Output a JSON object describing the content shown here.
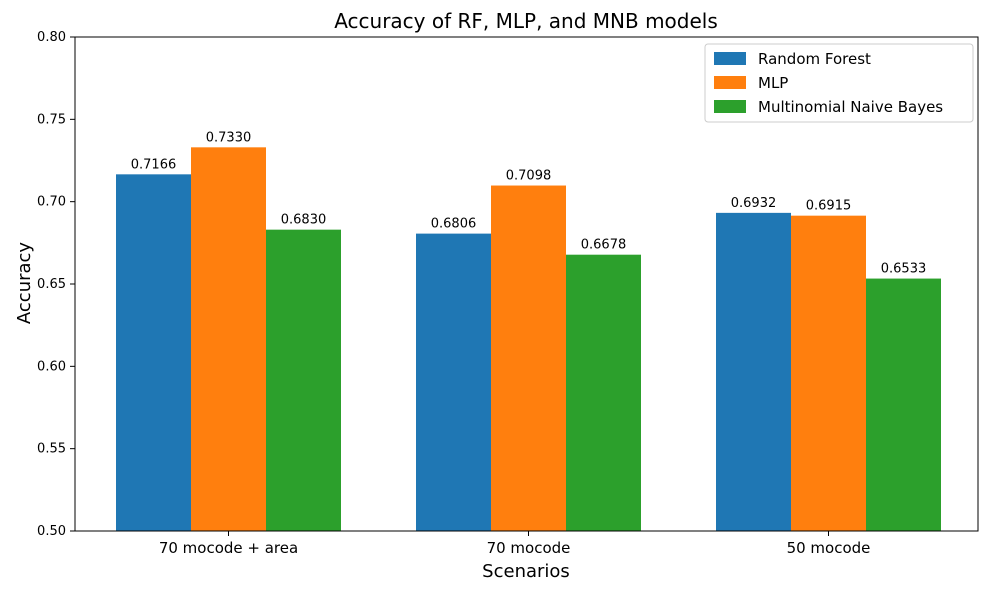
{
  "chart_data": {
    "type": "bar",
    "title": "Accuracy of RF, MLP, and MNB models",
    "xlabel": "Scenarios",
    "ylabel": "Accuracy",
    "ylim": [
      0.5,
      0.8
    ],
    "yticks": [
      0.5,
      0.55,
      0.6,
      0.65,
      0.7,
      0.75,
      0.8
    ],
    "ytick_labels": [
      "0.50",
      "0.55",
      "0.60",
      "0.65",
      "0.70",
      "0.75",
      "0.80"
    ],
    "categories": [
      "70 mocode + area",
      "70 mocode",
      "50 mocode"
    ],
    "series": [
      {
        "name": "Random Forest",
        "color": "#1f77b4",
        "values": [
          0.7166,
          0.6806,
          0.6932
        ]
      },
      {
        "name": "MLP",
        "color": "#ff7f0e",
        "values": [
          0.733,
          0.7098,
          0.6915
        ]
      },
      {
        "name": "Multinomial Naive Bayes",
        "color": "#2ca02c",
        "values": [
          0.683,
          0.6678,
          0.6533
        ]
      }
    ],
    "data_label_format": "4 decimals",
    "legend_position": "top-right",
    "grid": false
  }
}
